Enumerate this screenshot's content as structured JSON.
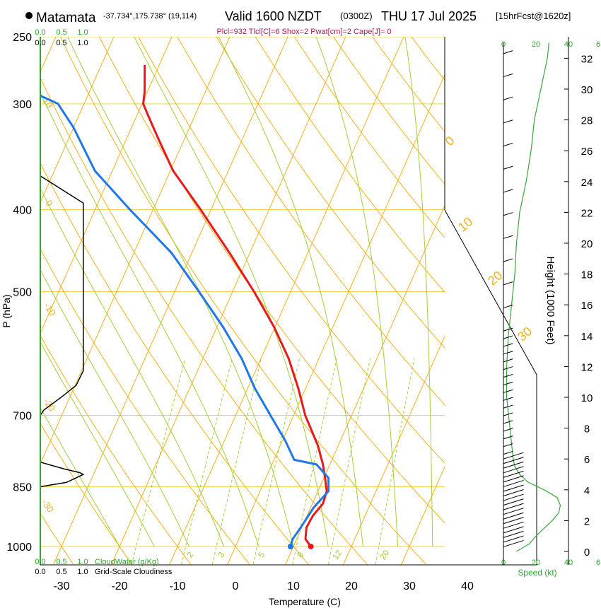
{
  "header": {
    "location": "Matamata",
    "coords": "-37.734°,175.738° (19,114)",
    "valid": "Valid 1600 NZDT",
    "utc": "(0300Z)",
    "date": "THU 17 Jul 2025",
    "fcst": "[15hrFcst@1620z]",
    "indices": "Plcl=932 Tlcl[C]=6 Shox=2 Pwat[cm]=2 Cape[J]= 0"
  },
  "colors": {
    "temperature": "#e8191d",
    "dewpoint": "#1f78e6",
    "isotherm": "#f2b21a",
    "dry_adiabat": "#f2b21a",
    "moist_adiabat": "#a2cf3a",
    "mixing_ratio": "#a2cf3a",
    "isobar": "#f2d24a",
    "cloud": "#000000",
    "speed": "#3aa63a",
    "green_text": "#2aa82a",
    "index_text": "#b0185e"
  },
  "chart_data": {
    "type": "skew-t",
    "title": "Matamata sounding",
    "xlabel": "Temperature (C)",
    "ylabel": "P (hPa)",
    "right_ylabel": "Height (1000 Feet)",
    "x_ticks": [
      "-30",
      "-20",
      "-10",
      "0",
      "10",
      "20",
      "30",
      "40"
    ],
    "p_ticks": [
      "250",
      "300",
      "400",
      "500",
      "700",
      "850",
      "1000"
    ],
    "height_ticks": [
      "0",
      "2",
      "4",
      "6",
      "8",
      "10",
      "12",
      "14",
      "16",
      "18",
      "20",
      "22",
      "24",
      "26",
      "28",
      "30",
      "32"
    ],
    "top_scale_labels": [
      "0.0",
      "0.5",
      "1.0"
    ],
    "bottom_scale_labels": [
      "0.0",
      "0.5",
      "1.0"
    ],
    "cloudwater_label": "CloudWater (g/Kg)",
    "cloudiness_label": "Grid-Scale Cloudiness",
    "speed_label": "Speed (kt)",
    "speed_ticks": [
      "0",
      "20",
      "40",
      "6"
    ],
    "temperature_profile": {
      "pressure": [
        1000,
        980,
        950,
        920,
        890,
        860,
        830,
        800,
        760,
        700,
        650,
        600,
        550,
        500,
        450,
        400,
        360,
        330,
        310,
        300,
        290,
        270
      ],
      "temp": [
        13,
        11.5,
        10.8,
        11,
        11.8,
        11.5,
        10.2,
        8.8,
        6.5,
        2.0,
        -1.3,
        -5.2,
        -10.2,
        -16.3,
        -23.5,
        -31.8,
        -39.5,
        -44.5,
        -48.0,
        -49.8,
        -50.5,
        -52.5
      ]
    },
    "dewpoint_profile": {
      "pressure": [
        1000,
        980,
        950,
        900,
        860,
        830,
        800,
        790,
        750,
        700,
        650,
        600,
        550,
        500,
        450,
        400,
        360,
        320,
        300,
        280,
        260
      ],
      "dewpt": [
        9.5,
        9.3,
        9.8,
        10.5,
        11.8,
        10.8,
        7.7,
        3.5,
        0.5,
        -4.0,
        -8.8,
        -13.3,
        -19.0,
        -25.8,
        -33.5,
        -44.0,
        -53.0,
        -60.0,
        -64.5,
        -76.0,
        -83.5
      ]
    },
    "isotherm_labels": [
      "0",
      "10",
      "20",
      "30"
    ],
    "isotherm_label_pressures": [
      330,
      410,
      495,
      580
    ],
    "dry_adiabat_labels": [
      "10",
      "0",
      "-10",
      "-20",
      "-30"
    ],
    "mixing_ratio_labels": [
      "2",
      "3",
      "5",
      "8",
      "12",
      "20"
    ],
    "wind_speed_profile": {
      "height_kft": [
        0,
        0.5,
        1,
        1.5,
        2,
        2.5,
        3,
        3.5,
        4,
        4.5,
        5,
        5.5,
        6,
        7,
        8,
        9,
        10,
        11,
        12,
        14,
        16,
        18,
        20,
        22,
        24,
        26,
        28,
        30,
        32,
        33
      ],
      "speed_kt": [
        8,
        16,
        20,
        25,
        30,
        34,
        35,
        33,
        25,
        15,
        10,
        7,
        6,
        5,
        4,
        3,
        2,
        2,
        2,
        3,
        5,
        7,
        8,
        10,
        14,
        17,
        19,
        23,
        27,
        28
      ]
    },
    "cloudiness_profile": {
      "pressure": [
        250,
        365,
        393,
        620,
        645,
        665,
        690,
        700,
        795,
        810,
        818,
        822,
        840,
        850
      ],
      "fraction": [
        0,
        0,
        0.98,
        0.98,
        0.82,
        0.5,
        0.08,
        0,
        0,
        0.55,
        0.9,
        0.98,
        0.6,
        0
      ]
    }
  }
}
